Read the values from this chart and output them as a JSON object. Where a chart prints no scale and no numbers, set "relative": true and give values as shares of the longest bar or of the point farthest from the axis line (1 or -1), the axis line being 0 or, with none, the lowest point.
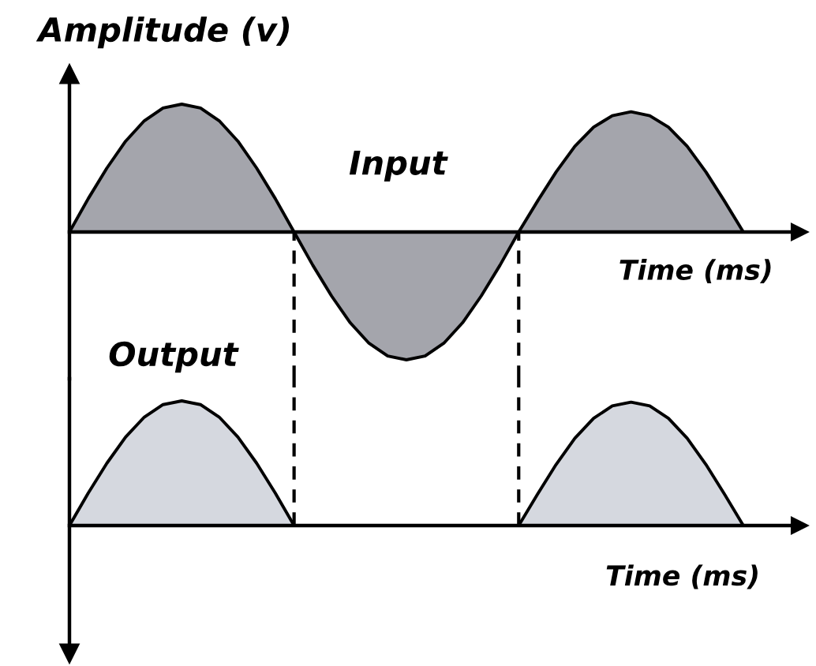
{
  "chart_data": [
    {
      "type": "area",
      "relative": true,
      "ylabel": "Amplitude (v)",
      "xlabel": "Time (ms)",
      "categories": [
        null,
        null,
        null,
        null,
        null,
        null,
        null,
        null,
        null,
        null,
        null,
        null,
        null,
        null,
        null,
        null,
        null,
        null,
        null,
        null,
        null,
        null,
        null,
        null,
        null,
        null,
        null,
        null,
        null,
        null,
        null,
        null,
        null,
        null,
        null,
        null,
        null,
        null,
        null,
        null
      ],
      "series": [
        {
          "name": "Input",
          "color": "#a4a5ac",
          "values": [
            0,
            0.26,
            0.5,
            0.71,
            0.87,
            0.97,
            1,
            0.97,
            0.87,
            0.71,
            0.5,
            0.26,
            0,
            -0.26,
            -0.5,
            -0.71,
            -0.87,
            -0.97,
            -1,
            -0.97,
            -0.87,
            -0.71,
            -0.5,
            -0.26,
            0,
            0.24,
            0.47,
            0.67,
            0.82,
            0.91,
            0.94,
            0.91,
            0.82,
            0.67,
            0.47,
            0.24,
            0,
            null,
            null,
            null
          ]
        }
      ]
    },
    {
      "type": "area",
      "relative": true,
      "xlabel": "Time (ms)",
      "categories": [
        null,
        null,
        null,
        null,
        null,
        null,
        null,
        null,
        null,
        null,
        null,
        null,
        null,
        null,
        null,
        null,
        null,
        null,
        null,
        null,
        null,
        null,
        null,
        null,
        null,
        null,
        null,
        null,
        null,
        null,
        null,
        null,
        null,
        null,
        null,
        null,
        null,
        null,
        null,
        null
      ],
      "series": [
        {
          "name": "Output",
          "color": "#d5d8df",
          "values": [
            0,
            0.26,
            0.5,
            0.71,
            0.87,
            0.97,
            1,
            0.97,
            0.87,
            0.71,
            0.5,
            0.26,
            0,
            0,
            0,
            0,
            0,
            0,
            0,
            0,
            0,
            0,
            0,
            0,
            0,
            0.25,
            0.49,
            0.7,
            0.86,
            0.96,
            0.99,
            0.96,
            0.86,
            0.7,
            0.49,
            0.25,
            0,
            null,
            null,
            null
          ]
        }
      ]
    }
  ]
}
